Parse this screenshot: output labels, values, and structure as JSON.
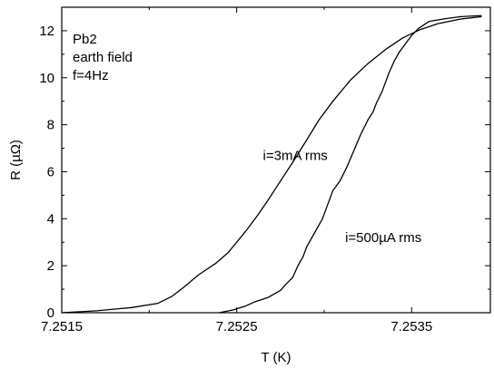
{
  "chart_data": {
    "type": "line",
    "xlabel": "T (K)",
    "ylabel": "R (µΩ)",
    "xlim": [
      7.2515,
      7.25395
    ],
    "ylim": [
      0,
      13
    ],
    "x_ticks": [
      7.2515,
      7.2525,
      7.2535
    ],
    "x_tick_labels": [
      "7.2515",
      "7.2525",
      "7.2535"
    ],
    "y_ticks": [
      0,
      2,
      4,
      6,
      8,
      10,
      12
    ],
    "y_tick_labels": [
      "0",
      "2",
      "4",
      "6",
      "8",
      "10",
      "12"
    ],
    "grid": false,
    "annotations": {
      "info_lines": [
        "Pb2",
        "earth field",
        "f=4Hz"
      ]
    },
    "series": [
      {
        "name": "i=3mA rms",
        "label_at": [
          7.25265,
          6.5
        ],
        "color": "#000000",
        "points": [
          [
            7.2515,
            0.0
          ],
          [
            7.2517,
            0.08
          ],
          [
            7.2519,
            0.22
          ],
          [
            7.25205,
            0.4
          ],
          [
            7.25213,
            0.7
          ],
          [
            7.2522,
            1.1
          ],
          [
            7.25228,
            1.6
          ],
          [
            7.25238,
            2.1
          ],
          [
            7.25245,
            2.55
          ],
          [
            7.2525,
            3.0
          ],
          [
            7.25256,
            3.55
          ],
          [
            7.25262,
            4.15
          ],
          [
            7.25268,
            4.8
          ],
          [
            7.25275,
            5.6
          ],
          [
            7.25282,
            6.4
          ],
          [
            7.2529,
            7.35
          ],
          [
            7.25297,
            8.2
          ],
          [
            7.25305,
            9.0
          ],
          [
            7.25315,
            9.9
          ],
          [
            7.25325,
            10.6
          ],
          [
            7.25335,
            11.2
          ],
          [
            7.25345,
            11.7
          ],
          [
            7.25355,
            12.05
          ],
          [
            7.25365,
            12.3
          ],
          [
            7.25378,
            12.5
          ],
          [
            7.2539,
            12.6
          ]
        ]
      },
      {
        "name": "i=500µA rms",
        "label_at": [
          7.25312,
          3.0
        ],
        "color": "#000000",
        "points": [
          [
            7.2524,
            0.0
          ],
          [
            7.25248,
            0.12
          ],
          [
            7.25255,
            0.28
          ],
          [
            7.2526,
            0.45
          ],
          [
            7.25268,
            0.65
          ],
          [
            7.25275,
            0.95
          ],
          [
            7.25278,
            1.2
          ],
          [
            7.25282,
            1.5
          ],
          [
            7.25285,
            2.0
          ],
          [
            7.25288,
            2.4
          ],
          [
            7.2529,
            2.8
          ],
          [
            7.25293,
            3.2
          ],
          [
            7.25296,
            3.6
          ],
          [
            7.25299,
            4.0
          ],
          [
            7.25302,
            4.6
          ],
          [
            7.25305,
            5.2
          ],
          [
            7.25309,
            5.6
          ],
          [
            7.25313,
            6.2
          ],
          [
            7.25317,
            6.9
          ],
          [
            7.25321,
            7.6
          ],
          [
            7.25325,
            8.2
          ],
          [
            7.25328,
            8.55
          ],
          [
            7.2533,
            8.95
          ],
          [
            7.25333,
            9.4
          ],
          [
            7.25337,
            10.2
          ],
          [
            7.2534,
            10.7
          ],
          [
            7.25343,
            11.1
          ],
          [
            7.25346,
            11.4
          ],
          [
            7.2535,
            11.8
          ],
          [
            7.25354,
            12.1
          ],
          [
            7.2536,
            12.4
          ],
          [
            7.25368,
            12.5
          ],
          [
            7.25378,
            12.6
          ],
          [
            7.2539,
            12.65
          ]
        ]
      }
    ]
  }
}
